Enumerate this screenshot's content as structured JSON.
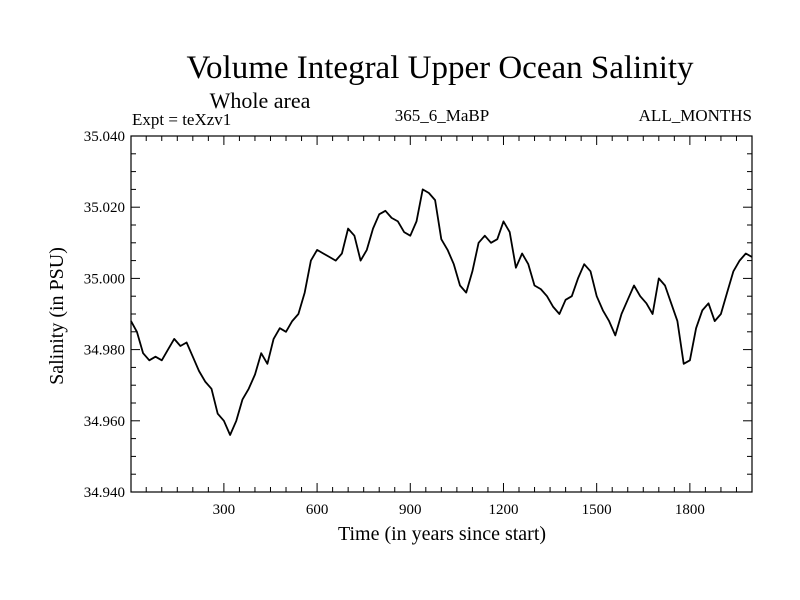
{
  "chart_data": {
    "type": "line",
    "title": "Volume Integral Upper Ocean Salinity",
    "subtitle": "Whole area",
    "experiment_label": "Expt = teXzv1",
    "run_label": "365_6_MaBP",
    "months_label": "ALL_MONTHS",
    "xlabel": "Time (in years since start)",
    "ylabel": "Salinity (in PSU)",
    "xlim": [
      1,
      2000
    ],
    "ylim": [
      34.94,
      35.04
    ],
    "xticks": [
      300,
      600,
      900,
      1200,
      1500,
      1800
    ],
    "xtick_labels": [
      "300",
      "600",
      "900",
      "1200",
      "1500",
      "1800"
    ],
    "yticks": [
      34.94,
      34.96,
      34.98,
      35.0,
      35.02,
      35.04
    ],
    "ytick_labels": [
      "34.940",
      "34.960",
      "34.980",
      "35.000",
      "35.020",
      "35.040"
    ],
    "x_minor_step": 50,
    "y_minor_step": 0.005,
    "grid": false,
    "series": [
      {
        "name": "Salinity",
        "color": "#000000",
        "x": [
          1,
          20,
          40,
          60,
          80,
          100,
          120,
          140,
          160,
          180,
          200,
          220,
          240,
          260,
          280,
          300,
          320,
          340,
          360,
          380,
          400,
          420,
          440,
          460,
          480,
          500,
          520,
          540,
          560,
          580,
          600,
          620,
          640,
          660,
          680,
          700,
          720,
          740,
          760,
          780,
          800,
          820,
          840,
          860,
          880,
          900,
          920,
          940,
          960,
          980,
          1000,
          1020,
          1040,
          1060,
          1080,
          1100,
          1120,
          1140,
          1160,
          1180,
          1200,
          1220,
          1240,
          1260,
          1280,
          1300,
          1320,
          1340,
          1360,
          1380,
          1400,
          1420,
          1440,
          1460,
          1480,
          1500,
          1520,
          1540,
          1560,
          1580,
          1600,
          1620,
          1640,
          1660,
          1680,
          1700,
          1720,
          1740,
          1760,
          1780,
          1800,
          1820,
          1840,
          1860,
          1880,
          1900,
          1920,
          1940,
          1960,
          1980,
          2000
        ],
        "values": [
          34.988,
          34.985,
          34.979,
          34.977,
          34.978,
          34.977,
          34.98,
          34.983,
          34.981,
          34.982,
          34.978,
          34.974,
          34.971,
          34.969,
          34.962,
          34.96,
          34.956,
          34.96,
          34.966,
          34.969,
          34.973,
          34.979,
          34.976,
          34.983,
          34.986,
          34.985,
          34.988,
          34.99,
          34.996,
          35.005,
          35.008,
          35.007,
          35.006,
          35.005,
          35.007,
          35.014,
          35.012,
          35.005,
          35.008,
          35.014,
          35.018,
          35.019,
          35.017,
          35.016,
          35.013,
          35.012,
          35.016,
          35.025,
          35.024,
          35.022,
          35.011,
          35.008,
          35.004,
          34.998,
          34.996,
          35.002,
          35.01,
          35.012,
          35.01,
          35.011,
          35.016,
          35.013,
          35.003,
          35.007,
          35.004,
          34.998,
          34.997,
          34.995,
          34.992,
          34.99,
          34.994,
          34.995,
          35.0,
          35.004,
          35.002,
          34.995,
          34.991,
          34.988,
          34.984,
          34.99,
          34.994,
          34.998,
          34.995,
          34.993,
          34.99,
          35.0,
          34.998,
          34.993,
          34.988,
          34.976,
          34.977,
          34.986,
          34.991,
          34.993,
          34.988,
          34.99,
          34.996,
          35.002,
          35.005,
          35.007,
          35.006
        ]
      }
    ]
  }
}
